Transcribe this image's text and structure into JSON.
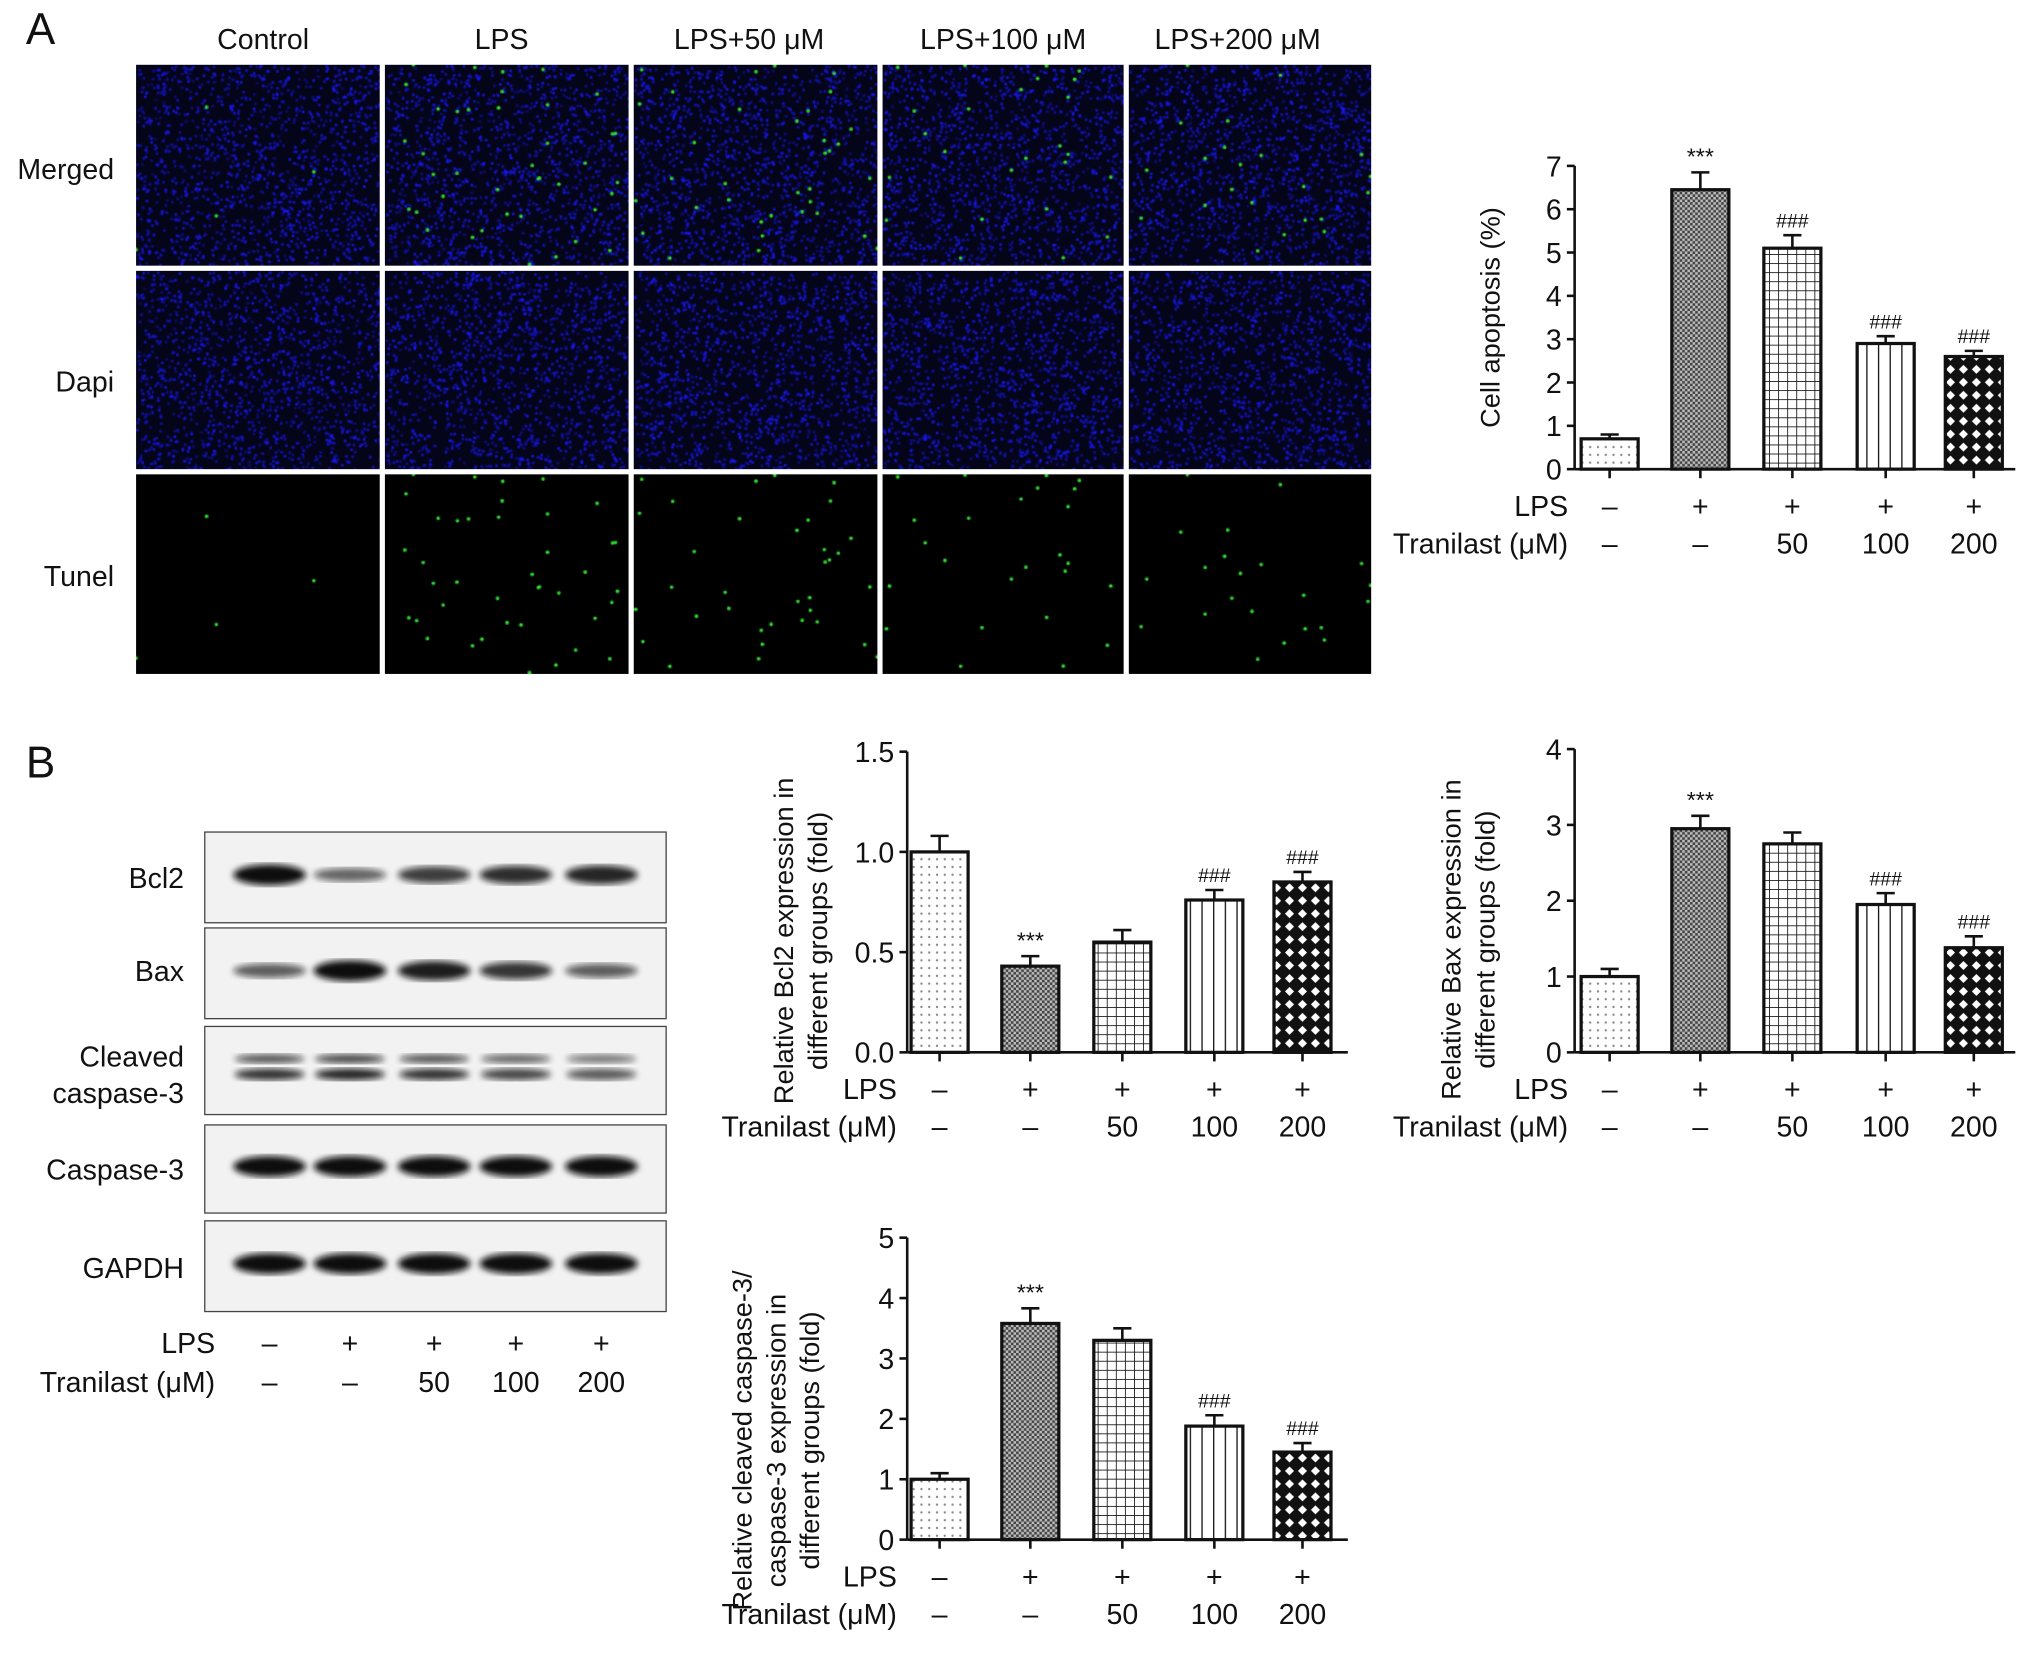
{
  "panel_a": {
    "letter": "A",
    "column_labels": [
      "Control",
      "LPS",
      "LPS+50 μM",
      "LPS+100 μM",
      "LPS+200 μM"
    ],
    "row_labels": [
      "Merged",
      "Dapi",
      "Tunel"
    ],
    "tunel_color": "#33dd33",
    "dapi_color": "#1a1aff"
  },
  "panel_b": {
    "letter": "B",
    "blot_rows": [
      "Bcl2",
      "Bax",
      "Cleaved caspase-3",
      "Caspase-3",
      "GAPDH"
    ],
    "lps_label": "LPS",
    "tranilast_label": "Tranilast (μM)",
    "lps": [
      "–",
      "+",
      "+",
      "+",
      "+"
    ],
    "tranilast": [
      "–",
      "–",
      "50",
      "100",
      "200"
    ]
  },
  "chart_data": [
    {
      "type": "bar",
      "title": "",
      "ylabel": [
        "Cell apoptosis (%)"
      ],
      "ylim": [
        0,
        7
      ],
      "yticks": [
        "0",
        "1",
        "2",
        "3",
        "4",
        "5",
        "6",
        "7"
      ],
      "row_labels": [
        "LPS",
        "Tranilast (μM)"
      ],
      "lps": [
        "–",
        "+",
        "+",
        "+",
        "+"
      ],
      "tranilast": [
        "–",
        "–",
        "50",
        "100",
        "200"
      ],
      "values": [
        0.7,
        6.45,
        5.1,
        2.9,
        2.6
      ],
      "errors": [
        0.1,
        0.4,
        0.3,
        0.17,
        0.13
      ],
      "annotations": [
        "",
        "***",
        "###",
        "###",
        "###"
      ]
    },
    {
      "type": "bar",
      "title": "",
      "ylabel": [
        "Relative Bcl2 expression in",
        "different groups (fold)"
      ],
      "ylim": [
        0,
        1.5
      ],
      "yticks": [
        "0.0",
        "0.5",
        "1.0",
        "1.5"
      ],
      "row_labels": [
        "LPS",
        "Tranilast (μM)"
      ],
      "lps": [
        "–",
        "+",
        "+",
        "+",
        "+"
      ],
      "tranilast": [
        "–",
        "–",
        "50",
        "100",
        "200"
      ],
      "values": [
        1.0,
        0.43,
        0.55,
        0.76,
        0.85
      ],
      "errors": [
        0.08,
        0.05,
        0.06,
        0.05,
        0.05
      ],
      "annotations": [
        "",
        "***",
        "",
        "###",
        "###"
      ]
    },
    {
      "type": "bar",
      "title": "",
      "ylabel": [
        "Relative Bax expression in",
        "different groups (fold)"
      ],
      "ylim": [
        0,
        4
      ],
      "yticks": [
        "0",
        "1",
        "2",
        "3",
        "4"
      ],
      "row_labels": [
        "LPS",
        "Tranilast (μM)"
      ],
      "lps": [
        "–",
        "+",
        "+",
        "+",
        "+"
      ],
      "tranilast": [
        "–",
        "–",
        "50",
        "100",
        "200"
      ],
      "values": [
        1.0,
        2.95,
        2.75,
        1.95,
        1.38
      ],
      "errors": [
        0.1,
        0.17,
        0.15,
        0.15,
        0.15
      ],
      "annotations": [
        "",
        "***",
        "",
        "###",
        "###"
      ]
    },
    {
      "type": "bar",
      "title": "",
      "ylabel": [
        "Relative cleaved caspase-3/",
        "caspase-3 expression in",
        "different groups (fold)"
      ],
      "ylim": [
        0,
        5
      ],
      "yticks": [
        "0",
        "1",
        "2",
        "3",
        "4",
        "5"
      ],
      "row_labels": [
        "LPS",
        "Tranilast (μM)"
      ],
      "lps": [
        "–",
        "+",
        "+",
        "+",
        "+"
      ],
      "tranilast": [
        "–",
        "–",
        "50",
        "100",
        "200"
      ],
      "values": [
        1.0,
        3.58,
        3.3,
        1.88,
        1.45
      ],
      "errors": [
        0.1,
        0.25,
        0.2,
        0.18,
        0.15
      ],
      "annotations": [
        "",
        "***",
        "",
        "###",
        "###"
      ]
    }
  ]
}
